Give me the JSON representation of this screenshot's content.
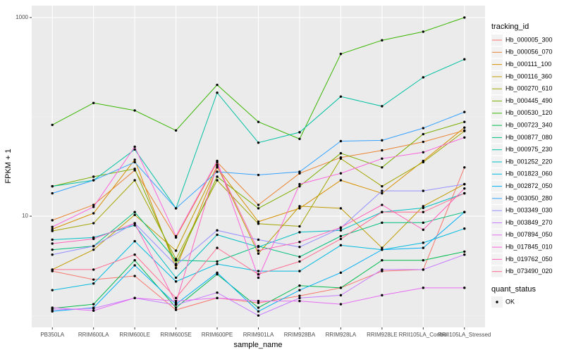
{
  "chart_data": {
    "type": "line",
    "x_label": "sample_name",
    "y_label": "FPKM + 1",
    "log_y": true,
    "grid": true,
    "categories": [
      "PB350LA",
      "RRIM600LA",
      "RRIM600LE",
      "RRIM600SE",
      "RRIM600PE",
      "RRIM901LA",
      "RRIM928BA",
      "RRIM928LA",
      "RRIM928LE",
      "RRII105LA_Control",
      "RRII105LA_Stressed"
    ],
    "ylim": [
      0.76,
      1318
    ],
    "yticks": [
      10,
      1000
    ],
    "legend_title": "tracking_id",
    "point_color": "#000000",
    "series": [
      {
        "name": "Hb_000005_300",
        "color": "#F8766D",
        "values": [
          2.8,
          2.3,
          2.5,
          1.14,
          1.5,
          1.34,
          1.58,
          1.9,
          2.8,
          2.9,
          31
        ]
      },
      {
        "name": "Hb_000056_070",
        "color": "#EA8331",
        "values": [
          9.1,
          13,
          29,
          6.1,
          35,
          13,
          27,
          39,
          46,
          56,
          73
        ]
      },
      {
        "name": "Hb_000111_100",
        "color": "#D89000",
        "values": [
          7.4,
          10.7,
          37,
          3.0,
          31,
          8.8,
          12,
          23,
          17,
          36,
          78
        ]
      },
      {
        "name": "Hb_000116_360",
        "color": "#C09B00",
        "values": [
          2.9,
          4.6,
          10.3,
          4.5,
          32,
          4.2,
          12.6,
          12,
          4.8,
          12.6,
          21
        ]
      },
      {
        "name": "Hb_000270_610",
        "color": "#A3A500",
        "values": [
          7.1,
          8.5,
          23,
          3.7,
          23,
          8.4,
          7.9,
          38,
          20,
          35,
          72
        ]
      },
      {
        "name": "Hb_000445_490",
        "color": "#7CAE00",
        "values": [
          20,
          25,
          30,
          3.3,
          25,
          12,
          20,
          43,
          31,
          67,
          89
        ]
      },
      {
        "name": "Hb_000530_120",
        "color": "#39B600",
        "values": [
          83,
          138,
          116,
          73,
          210,
          89,
          60,
          430,
          590,
          720,
          1000
        ]
      },
      {
        "name": "Hb_000723_340",
        "color": "#00BB4E",
        "values": [
          1.18,
          1.3,
          3.6,
          1.2,
          2.6,
          1.2,
          2.0,
          1.9,
          3.6,
          3.6,
          4.4
        ]
      },
      {
        "name": "Hb_000877_080",
        "color": "#00BF7D",
        "values": [
          4.6,
          5.0,
          11,
          3.6,
          3.5,
          5.0,
          3.9,
          6.3,
          8.6,
          8.6,
          11
        ]
      },
      {
        "name": "Hb_000975_230",
        "color": "#00C1A3",
        "values": [
          20,
          23,
          47,
          12,
          175,
          55,
          70,
          160,
          128,
          250,
          380
        ]
      },
      {
        "name": "Hb_001252_220",
        "color": "#00BFC4",
        "values": [
          5.8,
          6.1,
          8.1,
          2.4,
          6.5,
          4.9,
          6.9,
          7.2,
          11,
          12.1,
          17
        ]
      },
      {
        "name": "Hb_001823_060",
        "color": "#00BAE0",
        "values": [
          1.8,
          2.1,
          5.6,
          2.2,
          3.3,
          2.8,
          2.8,
          5.1,
          4.6,
          5.4,
          7.5
        ]
      },
      {
        "name": "Hb_002872_050",
        "color": "#00B0F6",
        "values": [
          1.1,
          1.2,
          3.2,
          1.3,
          2.7,
          1.1,
          1.8,
          2.7,
          4.6,
          4.8,
          11
        ]
      },
      {
        "name": "Hb_003050_280",
        "color": "#35A2FF",
        "values": [
          17,
          23,
          35,
          12,
          28,
          26,
          28,
          57,
          58,
          77,
          112
        ]
      },
      {
        "name": "Hb_003349_030",
        "color": "#9590FF",
        "values": [
          4.1,
          5.0,
          8.5,
          3.2,
          7.2,
          5.8,
          4.9,
          7.6,
          18,
          18,
          21
        ]
      },
      {
        "name": "Hb_003849_270",
        "color": "#C77CFF",
        "values": [
          1.14,
          1.18,
          1.5,
          1.28,
          1.7,
          1.0,
          1.5,
          1.6,
          2.9,
          2.9,
          4.1
        ]
      },
      {
        "name": "Hb_007894_050",
        "color": "#E76BF3",
        "values": [
          1.2,
          1.12,
          1.5,
          1.4,
          1.5,
          1.4,
          1.4,
          1.3,
          1.6,
          1.9,
          1.9
        ]
      },
      {
        "name": "Hb_017845_010",
        "color": "#FA62DB",
        "values": [
          7.8,
          12.4,
          50,
          6.3,
          36,
          2.4,
          21,
          27,
          38,
          44,
          62
        ]
      },
      {
        "name": "Hb_019762_050",
        "color": "#FF62BC",
        "values": [
          5.3,
          5.9,
          8.5,
          1.34,
          33,
          4.5,
          5.5,
          7.7,
          13,
          7.3,
          19
        ]
      },
      {
        "name": "Hb_073490_020",
        "color": "#FF6C91",
        "values": [
          2.9,
          2.9,
          4.1,
          1.5,
          4.8,
          2.6,
          3.5,
          5.9,
          11,
          11,
          17
        ]
      }
    ],
    "legend2_title": "quant_status",
    "legend2_items": [
      "OK"
    ]
  }
}
